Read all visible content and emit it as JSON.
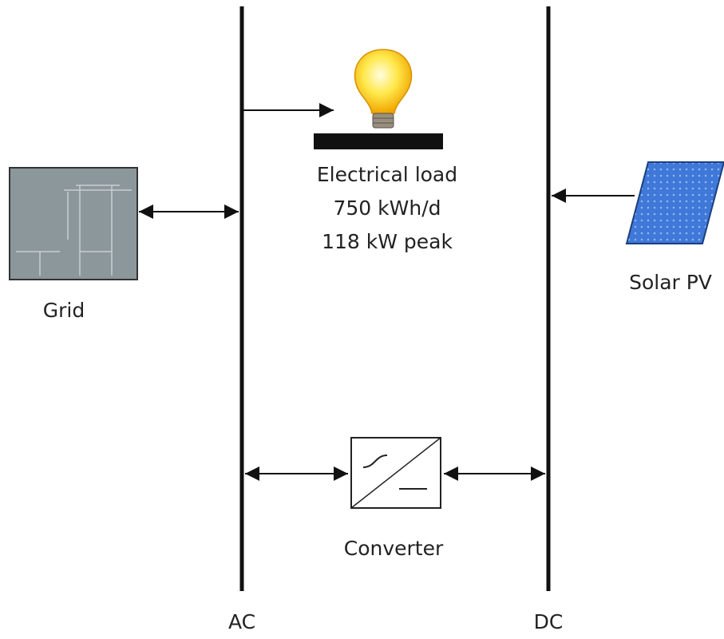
{
  "buses": [
    {
      "label": "AC"
    },
    {
      "label": "DC"
    }
  ],
  "nodes": [
    {
      "label": "Electrical load",
      "details": [
        "750 kWh/d",
        "118 kW peak"
      ]
    },
    {
      "label": "Grid"
    },
    {
      "label": "Solar PV"
    },
    {
      "label": "Converter"
    }
  ]
}
